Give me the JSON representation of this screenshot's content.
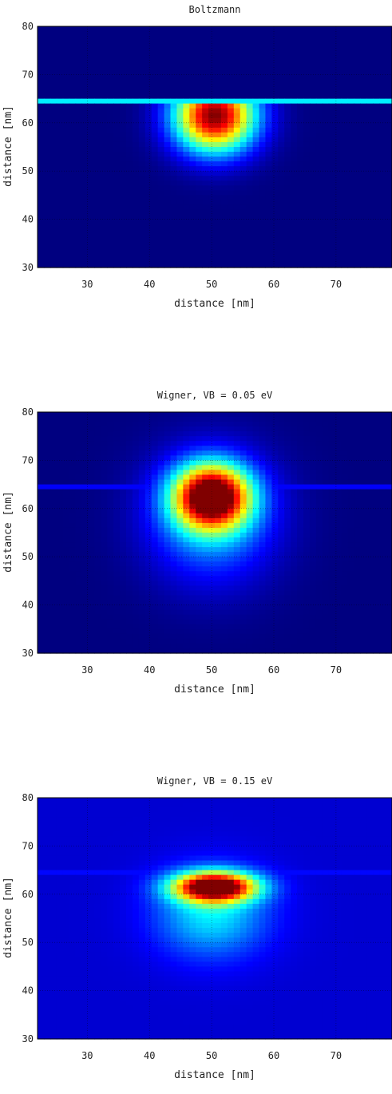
{
  "colors": {
    "background": "#ffffff",
    "colormap": "jet",
    "grid": "#000000"
  },
  "chart_data": [
    {
      "type": "heatmap",
      "title": "Boltzmann",
      "xlabel": "distance [nm]",
      "ylabel": "distance [nm]",
      "xlim": [
        22,
        79
      ],
      "ylim": [
        30,
        80
      ],
      "xticks": [
        30,
        40,
        50,
        60,
        70
      ],
      "yticks": [
        30,
        40,
        50,
        60,
        70,
        80
      ],
      "grid": true,
      "colormap": "jet",
      "features": {
        "blob": {
          "cx": 50.5,
          "cy": 61.5,
          "sx": 6.5,
          "sy": 7.5,
          "peak": 1.0,
          "cut_top": 64.0
        },
        "line": {
          "y": 64.5,
          "value": 0.36
        },
        "background": 0.0
      }
    },
    {
      "type": "heatmap",
      "title": "Wigner, VB = 0.05 eV",
      "xlabel": "distance [nm]",
      "ylabel": "distance [nm]",
      "xlim": [
        22,
        79
      ],
      "ylim": [
        30,
        80
      ],
      "xticks": [
        30,
        40,
        50,
        60,
        70
      ],
      "yticks": [
        30,
        40,
        50,
        60,
        70,
        80
      ],
      "grid": true,
      "colormap": "jet",
      "features": {
        "blob": {
          "cx": 50.0,
          "cy": 62.5,
          "sx": 6.0,
          "sy": 6.5,
          "peak": 1.0
        },
        "halo": {
          "cx": 50.0,
          "cy": 58.0,
          "sx": 10.0,
          "sy": 13.0,
          "peak": 0.3
        },
        "line": {
          "y": 64.8,
          "value": 0.12
        },
        "background": 0.0
      }
    },
    {
      "type": "heatmap",
      "title": "Wigner, VB = 0.15 eV",
      "xlabel": "distance [nm]",
      "ylabel": "distance [nm]",
      "xlim": [
        22,
        79
      ],
      "ylim": [
        30,
        80
      ],
      "xticks": [
        30,
        40,
        50,
        60,
        70
      ],
      "yticks": [
        30,
        40,
        50,
        60,
        70,
        80
      ],
      "grid": true,
      "colormap": "jet",
      "features": {
        "blob": {
          "cx": 50.5,
          "cy": 61.5,
          "sx": 6.5,
          "sy": 3.0,
          "peak": 1.0
        },
        "halo": {
          "cx": 50.0,
          "cy": 56.0,
          "sx": 9.0,
          "sy": 9.0,
          "peak": 0.28
        },
        "line": {
          "y": 64.5,
          "value": 0.13
        },
        "background": 0.08
      }
    }
  ]
}
